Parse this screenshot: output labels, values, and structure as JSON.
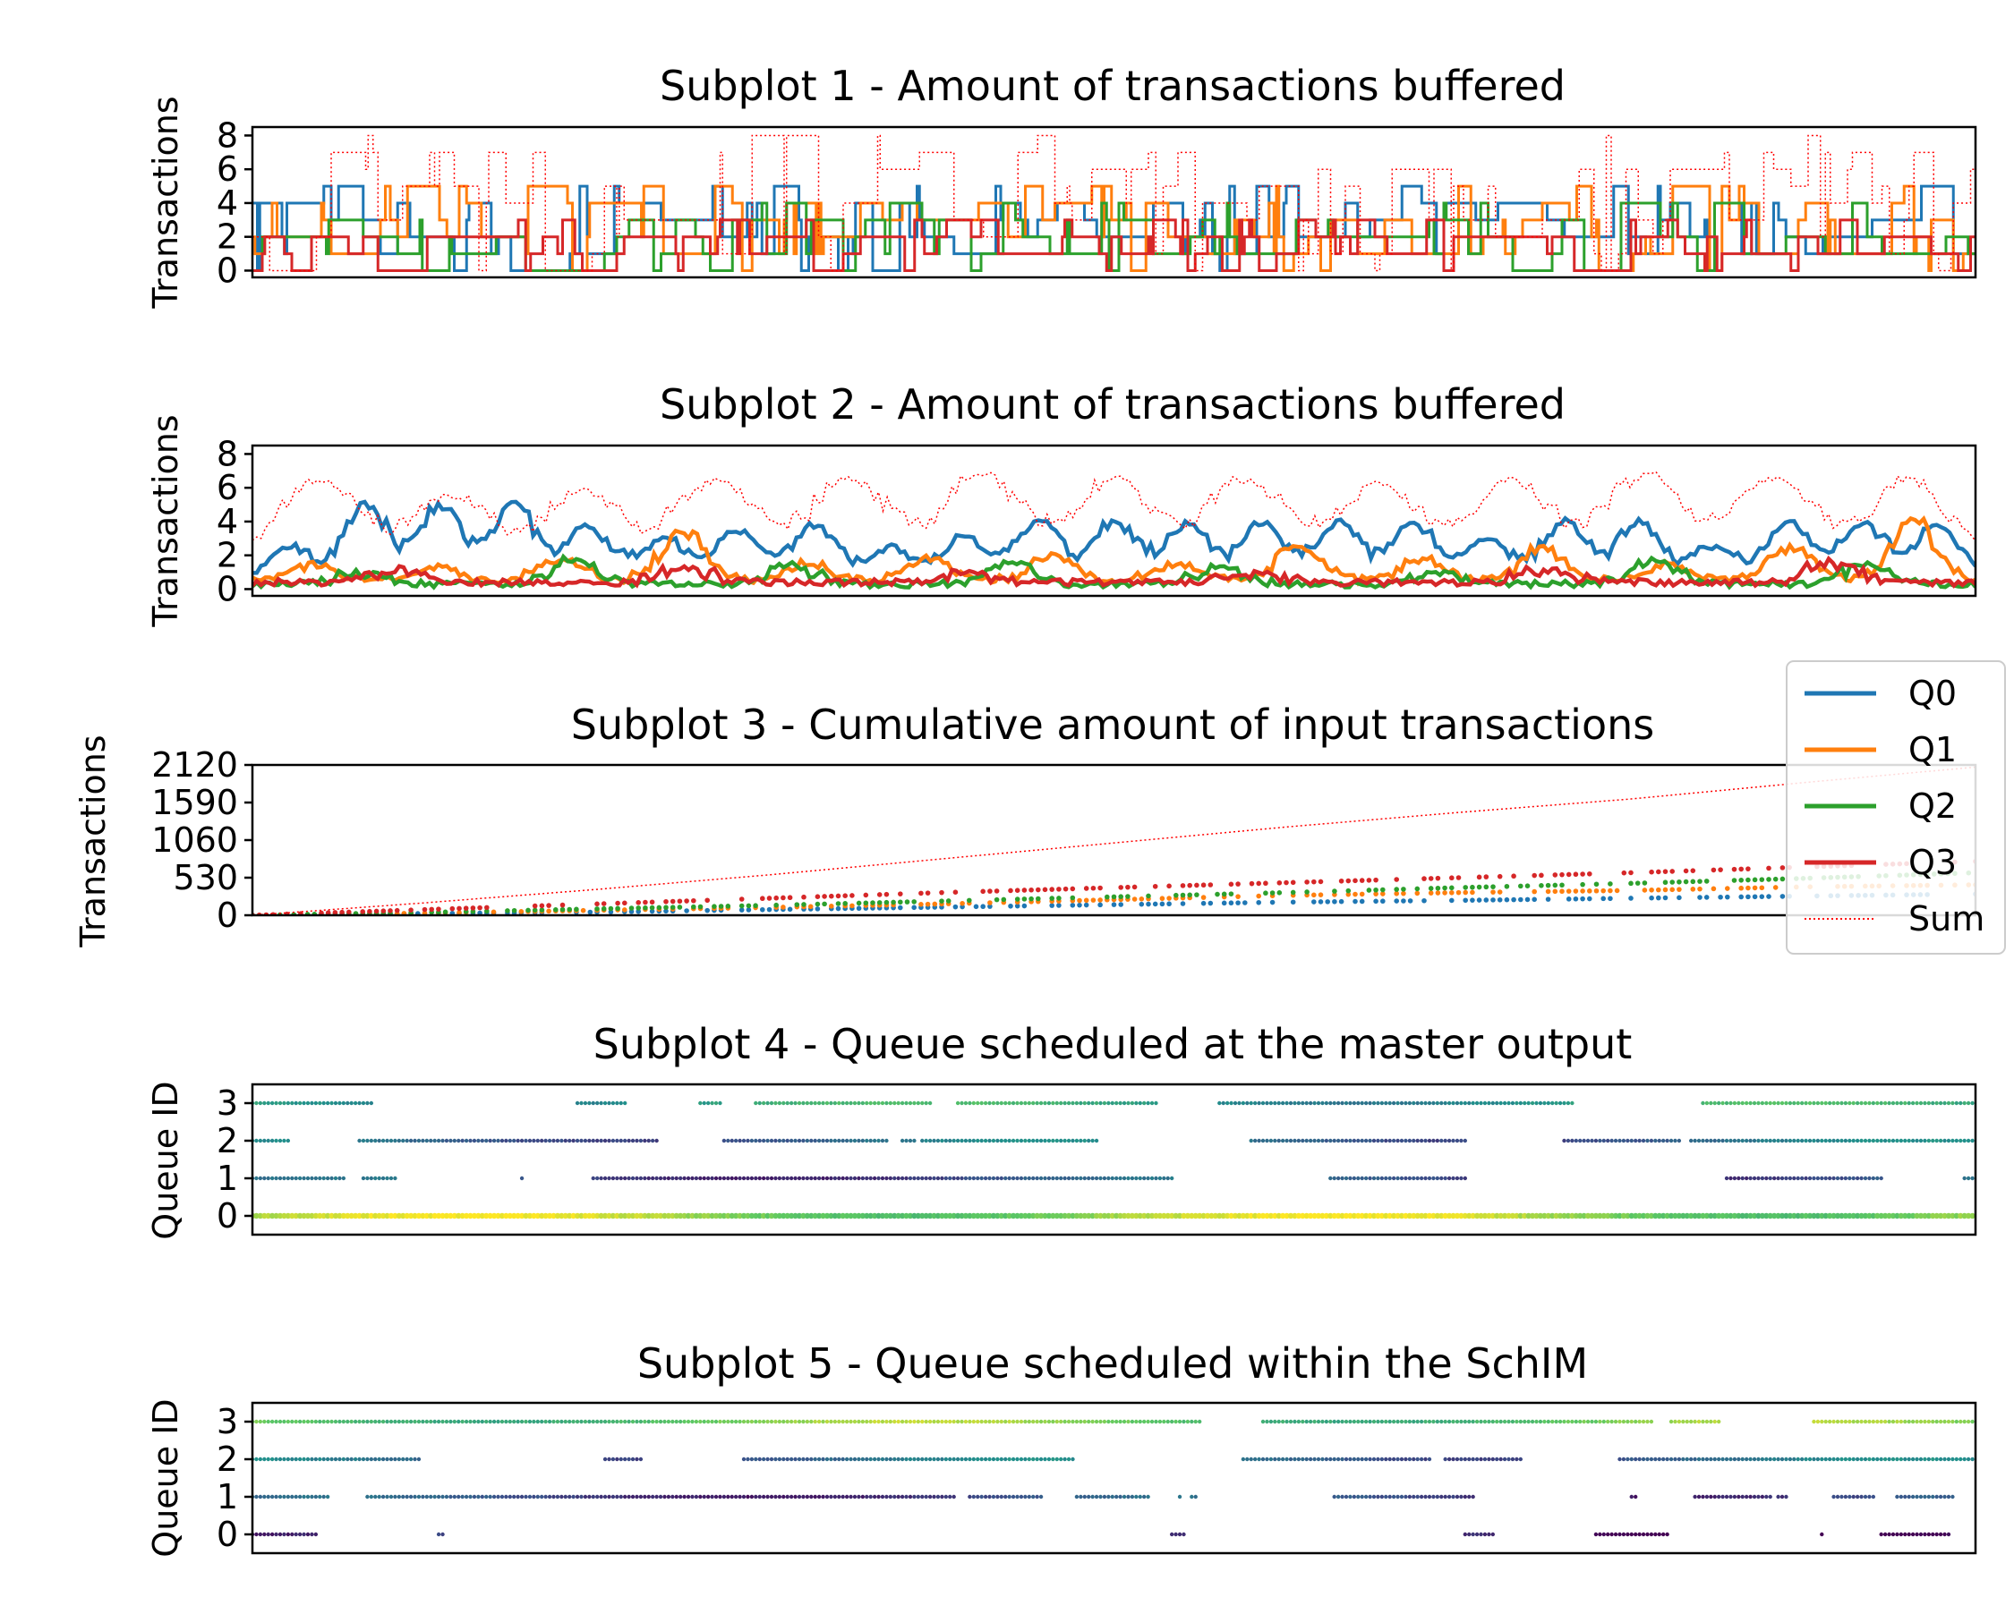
{
  "figure": {
    "legend": {
      "placement": "right, beside subplot 3",
      "entries": [
        {
          "label": "Q0",
          "color": "#1f77b4",
          "style": "solid"
        },
        {
          "label": "Q1",
          "color": "#ff7f0e",
          "style": "solid"
        },
        {
          "label": "Q2",
          "color": "#2ca02c",
          "style": "solid"
        },
        {
          "label": "Q3",
          "color": "#d62728",
          "style": "solid"
        },
        {
          "label": "Sum",
          "color": "#ff0000",
          "style": "dotted"
        }
      ]
    }
  },
  "chart_data": [
    {
      "id": "sp1",
      "type": "line",
      "title": "Subplot 1 - Amount of transactions buffered",
      "ylabel": "Transactions",
      "ylim": [
        -0.4,
        8.5
      ],
      "yticks": [
        "0",
        "2",
        "4",
        "6",
        "8"
      ],
      "ytick_values": [
        0,
        2,
        4,
        6,
        8
      ],
      "xlim": [
        0,
        1000
      ],
      "grid": false,
      "x_ticks_shown": false,
      "note_values": "raw buffer occupancy per time step, approximately read",
      "series": [
        {
          "name": "Q0",
          "levels": [
            0,
            1,
            2,
            3,
            4,
            5,
            6
          ],
          "typical_range": [
            0,
            5
          ]
        },
        {
          "name": "Q1",
          "levels": [
            0,
            1,
            2,
            3,
            4,
            5,
            6
          ],
          "typical_range": [
            0,
            5
          ]
        },
        {
          "name": "Q2",
          "levels": [
            0,
            1,
            2,
            3,
            4,
            5
          ],
          "typical_range": [
            0,
            4
          ]
        },
        {
          "name": "Q3",
          "levels": [
            0,
            1,
            2,
            3
          ],
          "typical_range": [
            0,
            3
          ]
        },
        {
          "name": "Sum",
          "levels": [
            0,
            2,
            4,
            6,
            7,
            8
          ],
          "typical_range": [
            0,
            8
          ]
        }
      ]
    },
    {
      "id": "sp2",
      "type": "line",
      "title": "Subplot 2 - Amount of transactions buffered",
      "ylabel": "Transactions",
      "ylim": [
        -0.4,
        8.5
      ],
      "yticks": [
        "0",
        "2",
        "4",
        "6",
        "8"
      ],
      "ytick_values": [
        0,
        2,
        4,
        6,
        8
      ],
      "xlim": [
        0,
        1000
      ],
      "grid": false,
      "x_ticks_shown": false,
      "note_values": "smoothed buffer occupancy, approximately read",
      "series": [
        {
          "name": "Q0",
          "peaks": [
            2.5,
            5,
            5,
            5,
            3.8,
            3,
            3.5,
            3.8,
            2.5,
            3.2,
            4,
            4,
            4,
            4,
            4,
            4,
            3,
            4,
            4,
            2.5,
            4,
            4,
            3.8
          ],
          "baseline": 0.6
        },
        {
          "name": "Q1",
          "peaks": [
            1.5,
            1.3,
            1.8,
            3.5,
            1.6,
            1.8,
            2,
            1.5,
            2.5,
            1.8,
            2.5,
            1.5,
            2.5,
            4.2
          ],
          "baseline": 0.5
        },
        {
          "name": "Q2",
          "peaks": [
            1.0,
            1.8,
            1.5,
            1.6,
            1.3,
            1.0,
            1.8,
            1.5
          ],
          "baseline": 0.3
        },
        {
          "name": "Q3",
          "peaks": [
            1.2,
            1.3,
            1.0,
            1.0,
            1.2,
            1.6
          ],
          "baseline": 0.4
        },
        {
          "name": "Sum",
          "peaks": [
            6.5,
            5.5,
            5.8,
            6.5,
            6.5,
            6.8,
            6.5,
            6.5,
            6.2,
            6.5,
            6.8,
            6.5,
            6.5
          ],
          "baseline": 1.5
        }
      ]
    },
    {
      "id": "sp3",
      "type": "scatter",
      "title": "Subplot 3 - Cumulative amount of input transactions",
      "ylabel": "Transactions",
      "ylim": [
        0,
        2120
      ],
      "yticks": [
        "0",
        "530",
        "1060",
        "1590",
        "2120"
      ],
      "ytick_values": [
        0,
        530,
        1060,
        1590,
        2120
      ],
      "xlim": [
        0,
        1000
      ],
      "grid": false,
      "x_ticks_shown": false,
      "series": [
        {
          "name": "Q0",
          "x": [
            0,
            100,
            200,
            300,
            400,
            500,
            600,
            700,
            800,
            900,
            1000
          ],
          "y": [
            0,
            25,
            45,
            80,
            115,
            150,
            185,
            210,
            240,
            270,
            300
          ]
        },
        {
          "name": "Q1",
          "x": [
            0,
            100,
            200,
            300,
            400,
            500,
            600,
            700,
            800,
            900,
            1000
          ],
          "y": [
            0,
            30,
            70,
            110,
            160,
            220,
            280,
            320,
            350,
            400,
            430
          ]
        },
        {
          "name": "Q2",
          "x": [
            0,
            100,
            200,
            300,
            400,
            500,
            600,
            700,
            800,
            900,
            1000
          ],
          "y": [
            0,
            40,
            90,
            140,
            200,
            260,
            320,
            390,
            450,
            520,
            600
          ]
        },
        {
          "name": "Q3",
          "x": [
            0,
            100,
            200,
            300,
            400,
            500,
            600,
            700,
            800,
            900,
            1000
          ],
          "y": [
            0,
            80,
            160,
            240,
            320,
            390,
            460,
            530,
            600,
            680,
            760
          ]
        },
        {
          "name": "Sum",
          "x": [
            0,
            100,
            200,
            300,
            400,
            500,
            600,
            700,
            800,
            900,
            1000
          ],
          "y": [
            0,
            175,
            365,
            570,
            795,
            1020,
            1245,
            1450,
            1640,
            1870,
            2090
          ]
        }
      ]
    },
    {
      "id": "sp4",
      "type": "scatter",
      "title": "Subplot 4 - Queue scheduled at the master output",
      "ylabel": "Queue ID",
      "ylim": [
        -0.5,
        3.5
      ],
      "yticks": [
        "0",
        "1",
        "2",
        "3"
      ],
      "ytick_values": [
        0,
        1,
        2,
        3
      ],
      "xlim": [
        0,
        1000
      ],
      "grid": false,
      "x_ticks_shown": false,
      "colormap": "viridis",
      "note_values": "each dot = one scheduled slot; colour encodes a per-point value (dark purple low, yellow high)",
      "rows": [
        {
          "queue": 3,
          "density": 0.62,
          "color_level": 0.55
        },
        {
          "queue": 2,
          "density": 0.66,
          "color_level": 0.35
        },
        {
          "queue": 1,
          "density": 0.55,
          "color_level": 0.25
        },
        {
          "queue": 0,
          "density": 1.0,
          "color_level": 0.85
        }
      ]
    },
    {
      "id": "sp5",
      "type": "scatter",
      "title": "Subplot 5 - Queue scheduled within the SchIM",
      "ylabel": "Queue ID",
      "ylim": [
        -0.5,
        3.5
      ],
      "yticks": [
        "0",
        "1",
        "2",
        "3"
      ],
      "ytick_values": [
        0,
        1,
        2,
        3
      ],
      "xlim": [
        0,
        1000
      ],
      "grid": false,
      "x_ticks_shown": false,
      "colormap": "viridis",
      "note_values": "each dot = one scheduled slot; colour encodes a per-point value (dark purple low, yellow high)",
      "rows": [
        {
          "queue": 3,
          "density": 0.9,
          "color_level": 0.75
        },
        {
          "queue": 2,
          "density": 0.66,
          "color_level": 0.35
        },
        {
          "queue": 1,
          "density": 0.58,
          "color_level": 0.22
        },
        {
          "queue": 0,
          "density": 0.35,
          "color_level": 0.05
        }
      ]
    }
  ]
}
